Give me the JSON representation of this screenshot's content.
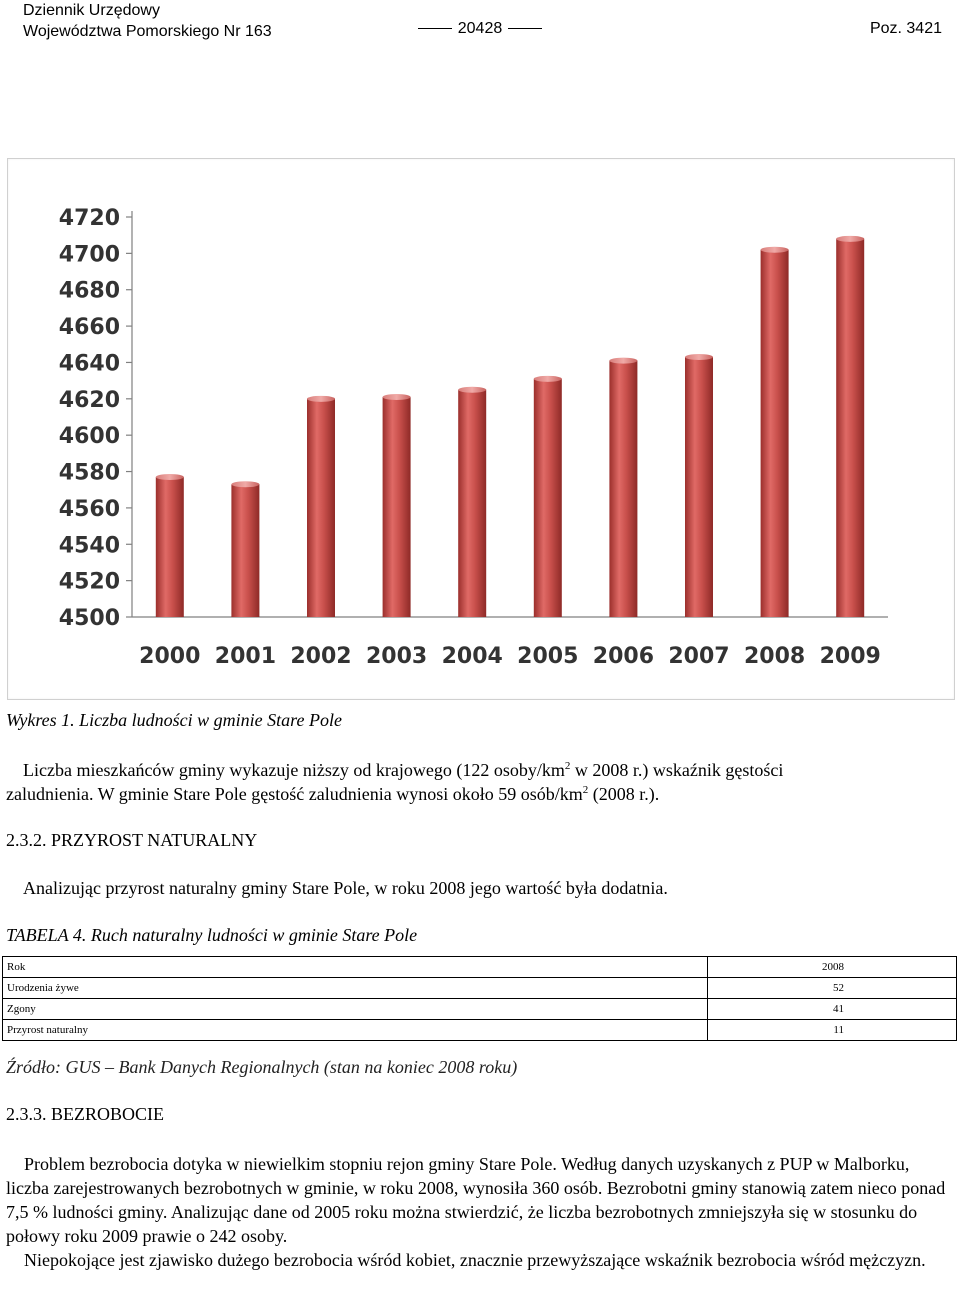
{
  "header": {
    "line1": "Dziennik Urzędowy",
    "line2": "Województwa Pomorskiego Nr 163",
    "center": "20428",
    "right": "Poz. 3421"
  },
  "chart_data": {
    "type": "bar",
    "categories": [
      "2000",
      "2001",
      "2002",
      "2003",
      "2004",
      "2005",
      "2006",
      "2007",
      "2008",
      "2009"
    ],
    "values": [
      4577,
      4573,
      4620,
      4621,
      4625,
      4631,
      4641,
      4643,
      4702,
      4708
    ],
    "ylim": [
      4500,
      4720
    ],
    "yticks": [
      "4500",
      "4520",
      "4540",
      "4560",
      "4580",
      "4600",
      "4620",
      "4640",
      "4660",
      "4680",
      "4700",
      "4720"
    ],
    "title": "",
    "xlabel": "",
    "ylabel": "",
    "bar_color": "#c0504d",
    "grid": false
  },
  "caption": "Wykres 1. Liczba ludności w gminie Stare Pole",
  "paragraph1": {
    "part1": "Liczba mieszkańców gminy wykazuje niższy od krajowego (122 osoby/km",
    "sup1": "2",
    "part2": " w 2008 r.) wskaźnik gęstości",
    "line2a": "zaludnienia. W gminie Stare Pole gęstość zaludnienia wynosi około 59 osób/km",
    "sup2": "2",
    "line2b": " (2008 r.)."
  },
  "section1": "2.3.2. PRZYROST NATURALNY",
  "paragraph2": "Analizując przyrost naturalny gminy Stare Pole, w roku 2008 jego wartość była dodatnia.",
  "table_title": {
    "label": "TABELA 4.",
    "text": " Ruch naturalny ludności w gminie Stare Pole"
  },
  "table": {
    "rows": [
      {
        "label": "Rok",
        "value": "2008"
      },
      {
        "label": "Urodzenia żywe",
        "value": "52"
      },
      {
        "label": "Zgony",
        "value": "41"
      },
      {
        "label": "Przyrost naturalny",
        "value": "11"
      }
    ]
  },
  "source": "Źródło: GUS – Bank Danych Regionalnych (stan na koniec 2008 roku)",
  "section2": "2.3.3. BEZROBOCIE",
  "paragraph3": "Problem bezrobocia dotyka w niewielkim stopniu rejon gminy Stare Pole. Według danych uzyskanych z PUP w Malborku, liczba zarejestrowanych bezrobotnych w gminie, w roku 2008, wynosiła 360 osób. Bezrobotni gminy stanowią zatem nieco ponad 7,5 % ludności gminy. Analizując dane od 2005 roku można stwierdzić, że liczba bezrobotnych zmniejszyła się w stosunku do połowy roku 2009 prawie o 242 osoby.",
  "paragraph4": "Niepokojące jest zjawisko dużego bezrobocia wśród kobiet, znacznie przewyższające wskaźnik bezrobocia wśród mężczyzn."
}
